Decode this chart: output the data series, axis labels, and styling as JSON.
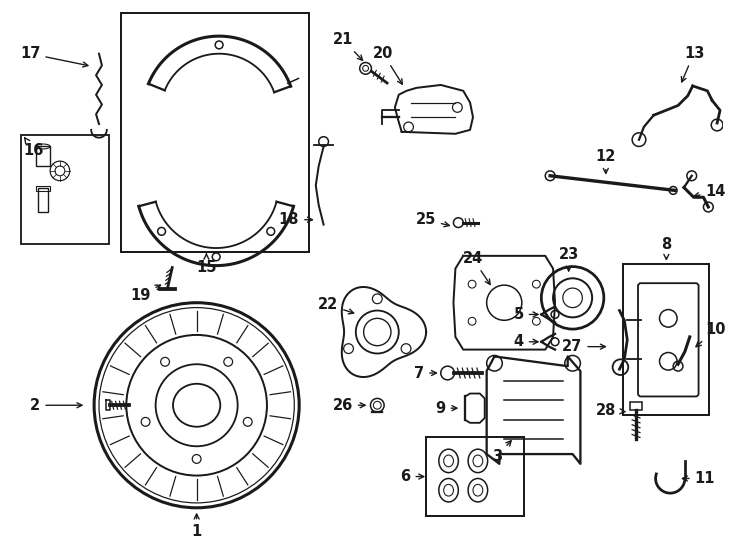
{
  "bg_color": "#ffffff",
  "line_color": "#1a1a1a",
  "fig_width": 7.34,
  "fig_height": 5.4,
  "dpi": 100,
  "font_size": 10.5,
  "lw": 1.1
}
